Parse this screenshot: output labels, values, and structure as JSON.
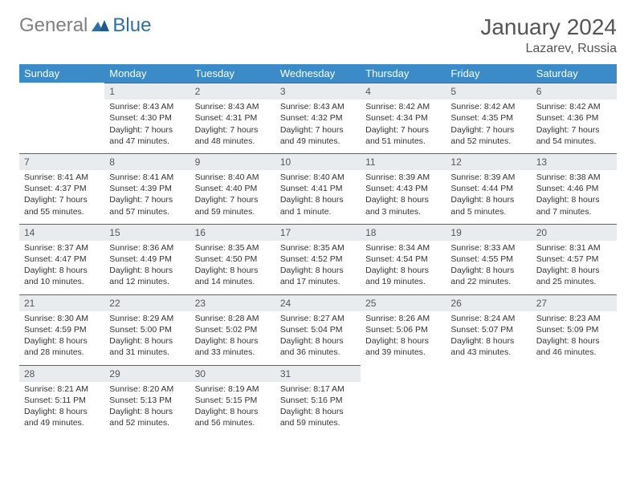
{
  "logo": {
    "part1": "General",
    "part2": "Blue"
  },
  "title": "January 2024",
  "location": "Lazarev, Russia",
  "colors": {
    "header_bg": "#3b8bc9",
    "header_text": "#ffffff",
    "daynum_bg": "#e9ecef",
    "border": "#2f6fa8",
    "logo_gray": "#808080",
    "logo_blue": "#2f6fa8",
    "text": "#333333"
  },
  "weekdays": [
    "Sunday",
    "Monday",
    "Tuesday",
    "Wednesday",
    "Thursday",
    "Friday",
    "Saturday"
  ],
  "weeks": [
    [
      null,
      {
        "d": "1",
        "sr": "Sunrise: 8:43 AM",
        "ss": "Sunset: 4:30 PM",
        "dl1": "Daylight: 7 hours",
        "dl2": "and 47 minutes."
      },
      {
        "d": "2",
        "sr": "Sunrise: 8:43 AM",
        "ss": "Sunset: 4:31 PM",
        "dl1": "Daylight: 7 hours",
        "dl2": "and 48 minutes."
      },
      {
        "d": "3",
        "sr": "Sunrise: 8:43 AM",
        "ss": "Sunset: 4:32 PM",
        "dl1": "Daylight: 7 hours",
        "dl2": "and 49 minutes."
      },
      {
        "d": "4",
        "sr": "Sunrise: 8:42 AM",
        "ss": "Sunset: 4:34 PM",
        "dl1": "Daylight: 7 hours",
        "dl2": "and 51 minutes."
      },
      {
        "d": "5",
        "sr": "Sunrise: 8:42 AM",
        "ss": "Sunset: 4:35 PM",
        "dl1": "Daylight: 7 hours",
        "dl2": "and 52 minutes."
      },
      {
        "d": "6",
        "sr": "Sunrise: 8:42 AM",
        "ss": "Sunset: 4:36 PM",
        "dl1": "Daylight: 7 hours",
        "dl2": "and 54 minutes."
      }
    ],
    [
      {
        "d": "7",
        "sr": "Sunrise: 8:41 AM",
        "ss": "Sunset: 4:37 PM",
        "dl1": "Daylight: 7 hours",
        "dl2": "and 55 minutes."
      },
      {
        "d": "8",
        "sr": "Sunrise: 8:41 AM",
        "ss": "Sunset: 4:39 PM",
        "dl1": "Daylight: 7 hours",
        "dl2": "and 57 minutes."
      },
      {
        "d": "9",
        "sr": "Sunrise: 8:40 AM",
        "ss": "Sunset: 4:40 PM",
        "dl1": "Daylight: 7 hours",
        "dl2": "and 59 minutes."
      },
      {
        "d": "10",
        "sr": "Sunrise: 8:40 AM",
        "ss": "Sunset: 4:41 PM",
        "dl1": "Daylight: 8 hours",
        "dl2": "and 1 minute."
      },
      {
        "d": "11",
        "sr": "Sunrise: 8:39 AM",
        "ss": "Sunset: 4:43 PM",
        "dl1": "Daylight: 8 hours",
        "dl2": "and 3 minutes."
      },
      {
        "d": "12",
        "sr": "Sunrise: 8:39 AM",
        "ss": "Sunset: 4:44 PM",
        "dl1": "Daylight: 8 hours",
        "dl2": "and 5 minutes."
      },
      {
        "d": "13",
        "sr": "Sunrise: 8:38 AM",
        "ss": "Sunset: 4:46 PM",
        "dl1": "Daylight: 8 hours",
        "dl2": "and 7 minutes."
      }
    ],
    [
      {
        "d": "14",
        "sr": "Sunrise: 8:37 AM",
        "ss": "Sunset: 4:47 PM",
        "dl1": "Daylight: 8 hours",
        "dl2": "and 10 minutes."
      },
      {
        "d": "15",
        "sr": "Sunrise: 8:36 AM",
        "ss": "Sunset: 4:49 PM",
        "dl1": "Daylight: 8 hours",
        "dl2": "and 12 minutes."
      },
      {
        "d": "16",
        "sr": "Sunrise: 8:35 AM",
        "ss": "Sunset: 4:50 PM",
        "dl1": "Daylight: 8 hours",
        "dl2": "and 14 minutes."
      },
      {
        "d": "17",
        "sr": "Sunrise: 8:35 AM",
        "ss": "Sunset: 4:52 PM",
        "dl1": "Daylight: 8 hours",
        "dl2": "and 17 minutes."
      },
      {
        "d": "18",
        "sr": "Sunrise: 8:34 AM",
        "ss": "Sunset: 4:54 PM",
        "dl1": "Daylight: 8 hours",
        "dl2": "and 19 minutes."
      },
      {
        "d": "19",
        "sr": "Sunrise: 8:33 AM",
        "ss": "Sunset: 4:55 PM",
        "dl1": "Daylight: 8 hours",
        "dl2": "and 22 minutes."
      },
      {
        "d": "20",
        "sr": "Sunrise: 8:31 AM",
        "ss": "Sunset: 4:57 PM",
        "dl1": "Daylight: 8 hours",
        "dl2": "and 25 minutes."
      }
    ],
    [
      {
        "d": "21",
        "sr": "Sunrise: 8:30 AM",
        "ss": "Sunset: 4:59 PM",
        "dl1": "Daylight: 8 hours",
        "dl2": "and 28 minutes."
      },
      {
        "d": "22",
        "sr": "Sunrise: 8:29 AM",
        "ss": "Sunset: 5:00 PM",
        "dl1": "Daylight: 8 hours",
        "dl2": "and 31 minutes."
      },
      {
        "d": "23",
        "sr": "Sunrise: 8:28 AM",
        "ss": "Sunset: 5:02 PM",
        "dl1": "Daylight: 8 hours",
        "dl2": "and 33 minutes."
      },
      {
        "d": "24",
        "sr": "Sunrise: 8:27 AM",
        "ss": "Sunset: 5:04 PM",
        "dl1": "Daylight: 8 hours",
        "dl2": "and 36 minutes."
      },
      {
        "d": "25",
        "sr": "Sunrise: 8:26 AM",
        "ss": "Sunset: 5:06 PM",
        "dl1": "Daylight: 8 hours",
        "dl2": "and 39 minutes."
      },
      {
        "d": "26",
        "sr": "Sunrise: 8:24 AM",
        "ss": "Sunset: 5:07 PM",
        "dl1": "Daylight: 8 hours",
        "dl2": "and 43 minutes."
      },
      {
        "d": "27",
        "sr": "Sunrise: 8:23 AM",
        "ss": "Sunset: 5:09 PM",
        "dl1": "Daylight: 8 hours",
        "dl2": "and 46 minutes."
      }
    ],
    [
      {
        "d": "28",
        "sr": "Sunrise: 8:21 AM",
        "ss": "Sunset: 5:11 PM",
        "dl1": "Daylight: 8 hours",
        "dl2": "and 49 minutes."
      },
      {
        "d": "29",
        "sr": "Sunrise: 8:20 AM",
        "ss": "Sunset: 5:13 PM",
        "dl1": "Daylight: 8 hours",
        "dl2": "and 52 minutes."
      },
      {
        "d": "30",
        "sr": "Sunrise: 8:19 AM",
        "ss": "Sunset: 5:15 PM",
        "dl1": "Daylight: 8 hours",
        "dl2": "and 56 minutes."
      },
      {
        "d": "31",
        "sr": "Sunrise: 8:17 AM",
        "ss": "Sunset: 5:16 PM",
        "dl1": "Daylight: 8 hours",
        "dl2": "and 59 minutes."
      },
      null,
      null,
      null
    ]
  ]
}
